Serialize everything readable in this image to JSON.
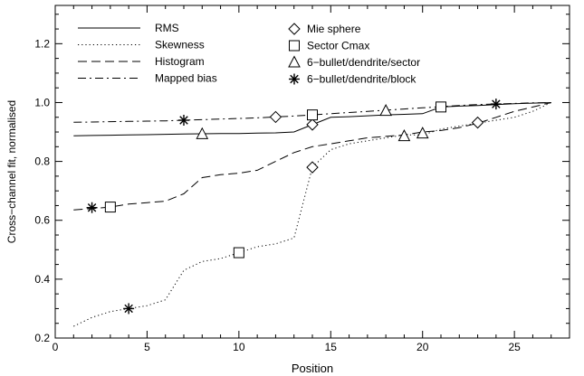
{
  "chart_data": {
    "type": "line",
    "xlabel": "Position",
    "ylabel": "Cross−channel fit, normalised",
    "xlim": [
      0,
      28
    ],
    "ylim": [
      0.2,
      1.33
    ],
    "grid": false,
    "legend_position": "top-left",
    "x_ticks": [
      0,
      5,
      10,
      15,
      20,
      25
    ],
    "x_tick_labels": [
      "0",
      "5",
      "10",
      "15",
      "20",
      "25"
    ],
    "y_ticks": [
      0.2,
      0.4,
      0.6,
      0.8,
      1.0,
      1.2
    ],
    "y_tick_labels": [
      "0.2",
      "0.4",
      "0.6",
      "0.8",
      "1.0",
      "1.2"
    ],
    "line_legend": [
      "RMS",
      "Skewness",
      "Histogram",
      "Mapped bias"
    ],
    "marker_legend": [
      "Mie sphere",
      "Sector Cmax",
      "6−bullet/dendrite/sector",
      "6−bullet/dendrite/block"
    ],
    "series": [
      {
        "name": "RMS",
        "style": "solid",
        "x": [
          1,
          2,
          3,
          4,
          5,
          6,
          7,
          8,
          9,
          10,
          11,
          12,
          13,
          14,
          15,
          16,
          17,
          18,
          19,
          20,
          21,
          22,
          23,
          24,
          25,
          26,
          27
        ],
        "y": [
          0.887,
          0.888,
          0.889,
          0.89,
          0.891,
          0.892,
          0.893,
          0.894,
          0.895,
          0.895,
          0.896,
          0.897,
          0.9,
          0.925,
          0.95,
          0.952,
          0.955,
          0.958,
          0.96,
          0.962,
          0.985,
          0.988,
          0.99,
          0.993,
          0.996,
          0.998,
          1.0
        ]
      },
      {
        "name": "Skewness",
        "style": "dotted",
        "x": [
          1,
          2,
          3,
          4,
          5,
          6,
          7,
          8,
          9,
          10,
          11,
          12,
          13,
          14,
          15,
          16,
          17,
          18,
          19,
          20,
          21,
          22,
          23,
          24,
          25,
          26,
          27
        ],
        "y": [
          0.24,
          0.27,
          0.29,
          0.3,
          0.31,
          0.33,
          0.43,
          0.46,
          0.47,
          0.49,
          0.51,
          0.52,
          0.54,
          0.78,
          0.84,
          0.86,
          0.87,
          0.88,
          0.89,
          0.89,
          0.91,
          0.92,
          0.93,
          0.94,
          0.95,
          0.97,
          1.0
        ]
      },
      {
        "name": "Histogram",
        "style": "dashed",
        "x": [
          1,
          2,
          3,
          4,
          5,
          6,
          7,
          8,
          9,
          10,
          11,
          12,
          13,
          14,
          15,
          16,
          17,
          18,
          19,
          20,
          21,
          22,
          23,
          24,
          25,
          26,
          27
        ],
        "y": [
          0.635,
          0.64,
          0.645,
          0.655,
          0.66,
          0.665,
          0.69,
          0.745,
          0.755,
          0.76,
          0.77,
          0.8,
          0.83,
          0.85,
          0.86,
          0.87,
          0.88,
          0.885,
          0.89,
          0.9,
          0.905,
          0.915,
          0.93,
          0.95,
          0.97,
          0.985,
          1.0
        ]
      },
      {
        "name": "Mapped bias",
        "style": "dashdot",
        "x": [
          1,
          2,
          3,
          4,
          5,
          6,
          7,
          8,
          9,
          10,
          11,
          12,
          13,
          14,
          15,
          16,
          17,
          18,
          19,
          20,
          21,
          22,
          23,
          24,
          25,
          26,
          27
        ],
        "y": [
          0.933,
          0.934,
          0.935,
          0.936,
          0.937,
          0.938,
          0.94,
          0.942,
          0.944,
          0.946,
          0.948,
          0.951,
          0.954,
          0.958,
          0.962,
          0.966,
          0.97,
          0.974,
          0.978,
          0.982,
          0.986,
          0.99,
          0.993,
          0.995,
          0.997,
          0.999,
          1.0
        ]
      }
    ],
    "marker_series": [
      {
        "name": "Mie sphere",
        "symbol": "diamond",
        "points": [
          [
            12,
            0.951
          ],
          [
            14,
            0.925
          ],
          [
            14,
            0.78
          ],
          [
            23,
            0.932
          ]
        ]
      },
      {
        "name": "Sector Cmax",
        "symbol": "square",
        "points": [
          [
            3,
            0.645
          ],
          [
            10,
            0.49
          ],
          [
            14,
            0.958
          ],
          [
            21,
            0.985
          ]
        ]
      },
      {
        "name": "6−bullet/dendrite/sector",
        "symbol": "triangle",
        "points": [
          [
            8,
            0.893
          ],
          [
            18,
            0.972
          ],
          [
            19,
            0.886
          ],
          [
            20,
            0.895
          ]
        ]
      },
      {
        "name": "6−bullet/dendrite/block",
        "symbol": "asterisk",
        "points": [
          [
            2,
            0.643
          ],
          [
            4,
            0.3
          ],
          [
            7,
            0.94
          ],
          [
            24,
            0.995
          ]
        ]
      }
    ]
  }
}
